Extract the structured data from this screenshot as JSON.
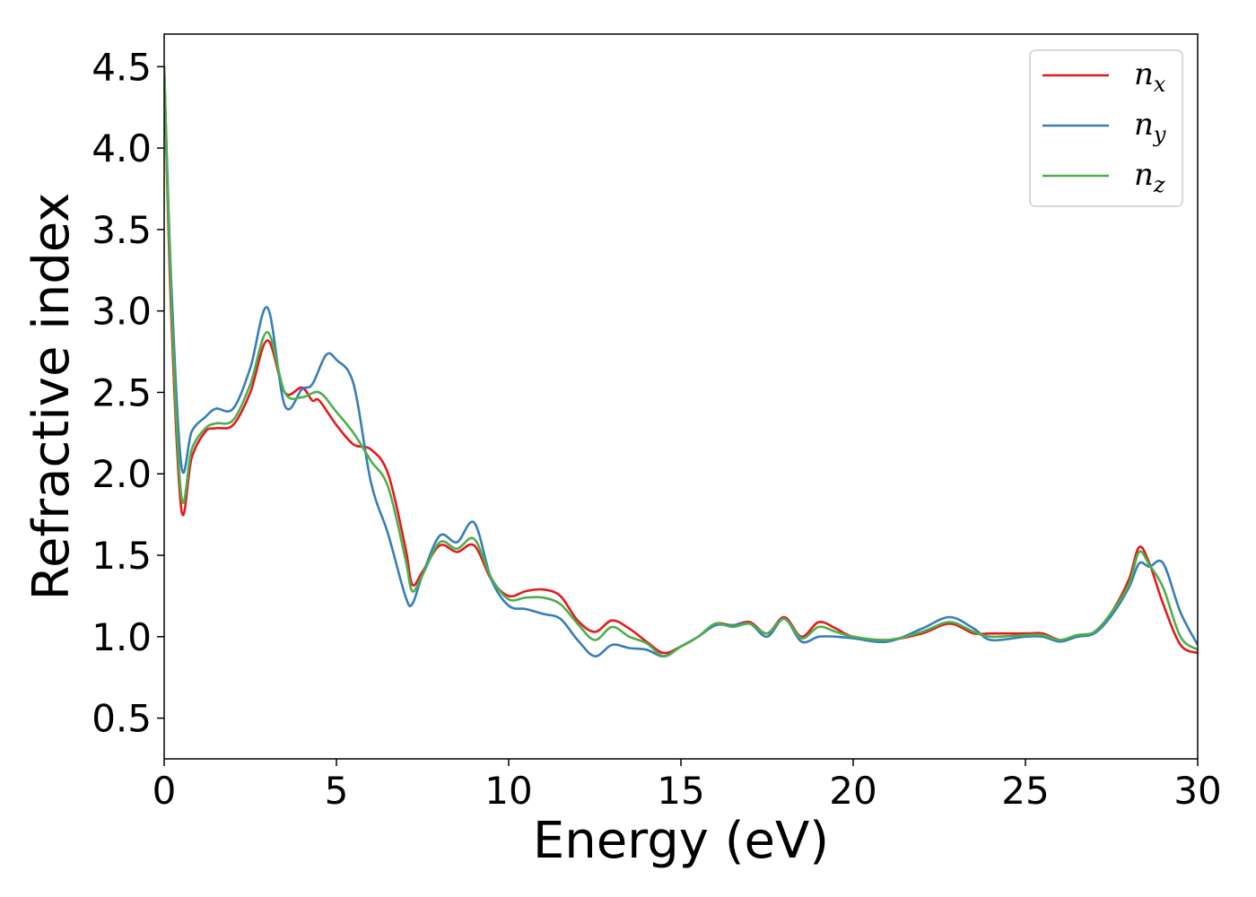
{
  "chart_data": {
    "type": "line",
    "xlabel": "Energy (eV)",
    "ylabel": "Refractive index",
    "xlim": [
      0,
      30
    ],
    "ylim": [
      0.25,
      4.7
    ],
    "xticks": [
      0,
      5,
      10,
      15,
      20,
      25,
      30
    ],
    "yticks": [
      0.5,
      1.0,
      1.5,
      2.0,
      2.5,
      3.0,
      3.5,
      4.0,
      4.5
    ],
    "legend_position": "top-right",
    "grid": false,
    "series": [
      {
        "name": "n",
        "subscript": "x",
        "color": "#e41a1c",
        "x": [
          0,
          0.2,
          0.5,
          0.8,
          1.2,
          1.5,
          2.0,
          2.5,
          3.0,
          3.5,
          4.0,
          4.3,
          4.5,
          5.0,
          5.5,
          6.0,
          6.5,
          7.0,
          7.2,
          7.5,
          8.0,
          8.5,
          9.0,
          9.5,
          10.0,
          10.5,
          11.0,
          11.5,
          12.0,
          12.5,
          13.0,
          13.5,
          14.0,
          14.5,
          15.0,
          15.5,
          16.0,
          16.5,
          17.0,
          17.5,
          18.0,
          18.5,
          19.0,
          19.5,
          20.0,
          21.0,
          22.0,
          22.8,
          23.5,
          24.0,
          25.0,
          25.5,
          26.0,
          26.5,
          27.0,
          27.5,
          28.0,
          28.3,
          28.6,
          29.0,
          29.5,
          30.0
        ],
        "y": [
          4.5,
          3.0,
          1.78,
          2.1,
          2.26,
          2.28,
          2.3,
          2.5,
          2.82,
          2.5,
          2.53,
          2.45,
          2.45,
          2.3,
          2.18,
          2.15,
          2.0,
          1.55,
          1.32,
          1.4,
          1.56,
          1.52,
          1.56,
          1.35,
          1.25,
          1.28,
          1.29,
          1.25,
          1.1,
          1.03,
          1.1,
          1.05,
          0.97,
          0.9,
          0.94,
          1.0,
          1.08,
          1.07,
          1.09,
          1.02,
          1.12,
          1.0,
          1.09,
          1.05,
          1.0,
          0.98,
          1.02,
          1.08,
          1.02,
          1.02,
          1.02,
          1.02,
          0.98,
          1.0,
          1.03,
          1.15,
          1.35,
          1.55,
          1.45,
          1.2,
          0.95,
          0.9
        ]
      },
      {
        "name": "n",
        "subscript": "y",
        "color": "#377eb8",
        "x": [
          0,
          0.2,
          0.5,
          0.8,
          1.2,
          1.5,
          2.0,
          2.5,
          3.0,
          3.5,
          4.0,
          4.3,
          4.7,
          5.0,
          5.5,
          6.0,
          6.5,
          7.0,
          7.2,
          7.5,
          8.0,
          8.5,
          9.0,
          9.5,
          10.0,
          10.5,
          11.0,
          11.5,
          12.0,
          12.5,
          13.0,
          13.5,
          14.0,
          14.5,
          15.0,
          15.5,
          16.0,
          16.5,
          17.0,
          17.5,
          18.0,
          18.5,
          19.0,
          19.5,
          20.0,
          21.0,
          22.0,
          22.8,
          23.5,
          24.0,
          25.0,
          25.5,
          26.0,
          26.5,
          27.0,
          27.5,
          28.0,
          28.3,
          28.6,
          29.0,
          29.5,
          30.0
        ],
        "y": [
          4.5,
          3.2,
          2.05,
          2.26,
          2.35,
          2.4,
          2.4,
          2.65,
          3.02,
          2.42,
          2.52,
          2.55,
          2.73,
          2.7,
          2.55,
          1.95,
          1.63,
          1.25,
          1.2,
          1.38,
          1.62,
          1.58,
          1.7,
          1.35,
          1.19,
          1.17,
          1.14,
          1.11,
          0.98,
          0.88,
          0.95,
          0.93,
          0.92,
          0.88,
          0.94,
          1.0,
          1.07,
          1.07,
          1.08,
          1.0,
          1.11,
          0.97,
          1.0,
          1.0,
          0.99,
          0.97,
          1.05,
          1.12,
          1.05,
          0.98,
          1.0,
          1.0,
          0.97,
          1.0,
          1.02,
          1.13,
          1.3,
          1.45,
          1.43,
          1.45,
          1.15,
          0.95
        ]
      },
      {
        "name": "n",
        "subscript": "z",
        "color": "#4daf4a",
        "x": [
          0,
          0.2,
          0.5,
          0.8,
          1.2,
          1.5,
          2.0,
          2.5,
          3.0,
          3.5,
          4.0,
          4.5,
          5.0,
          5.5,
          6.0,
          6.5,
          7.0,
          7.2,
          7.5,
          8.0,
          8.5,
          9.0,
          9.5,
          10.0,
          10.5,
          11.0,
          11.5,
          12.0,
          12.5,
          13.0,
          13.5,
          14.0,
          14.5,
          15.0,
          15.5,
          16.0,
          16.5,
          17.0,
          17.5,
          18.0,
          18.5,
          19.0,
          19.5,
          20.0,
          21.0,
          22.0,
          22.8,
          23.5,
          24.0,
          25.0,
          25.5,
          26.0,
          26.5,
          27.0,
          27.5,
          28.0,
          28.3,
          28.6,
          29.0,
          29.5,
          30.0
        ],
        "y": [
          4.5,
          3.1,
          1.86,
          2.15,
          2.28,
          2.31,
          2.33,
          2.55,
          2.87,
          2.5,
          2.47,
          2.5,
          2.38,
          2.25,
          2.08,
          1.92,
          1.48,
          1.28,
          1.38,
          1.58,
          1.54,
          1.6,
          1.36,
          1.23,
          1.24,
          1.24,
          1.2,
          1.08,
          0.98,
          1.06,
          1.0,
          0.96,
          0.88,
          0.94,
          1.0,
          1.08,
          1.06,
          1.08,
          1.02,
          1.11,
          0.99,
          1.06,
          1.03,
          1.0,
          0.98,
          1.03,
          1.09,
          1.03,
          1.0,
          1.01,
          1.01,
          0.98,
          1.01,
          1.03,
          1.15,
          1.32,
          1.52,
          1.44,
          1.3,
          1.0,
          0.92
        ]
      }
    ]
  }
}
